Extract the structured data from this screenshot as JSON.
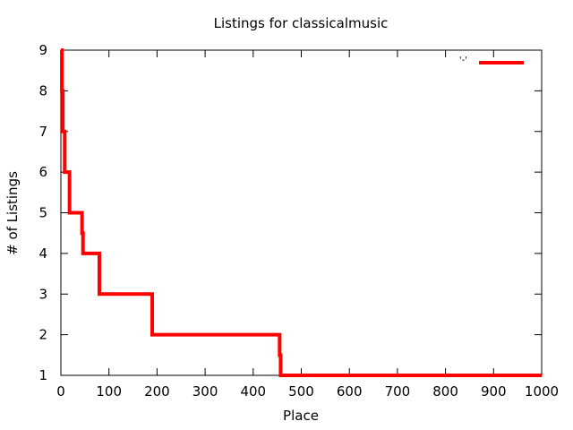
{
  "chart_data": {
    "type": "line",
    "title": "Listings for classicalmusic",
    "xlabel": "Place",
    "ylabel": "# of Listings",
    "xlim": [
      0,
      1000
    ],
    "ylim": [
      1,
      9
    ],
    "xticks": [
      0,
      100,
      200,
      300,
      400,
      500,
      600,
      700,
      800,
      900,
      1000
    ],
    "yticks": [
      1,
      2,
      3,
      4,
      5,
      6,
      7,
      8,
      9
    ],
    "grid": false,
    "legend": {
      "position": "top-right",
      "entries": [
        {
          "label": "'-'",
          "color": "#ff0000"
        }
      ]
    },
    "series": [
      {
        "color": "#ff0000",
        "line_style": "step",
        "x": [
          0,
          2,
          4,
          8,
          18,
          44,
          46,
          80,
          190,
          455,
          457,
          1000
        ],
        "y": [
          9,
          8,
          7,
          6,
          5,
          4.5,
          4,
          3,
          2,
          1.5,
          1,
          1
        ]
      }
    ]
  }
}
